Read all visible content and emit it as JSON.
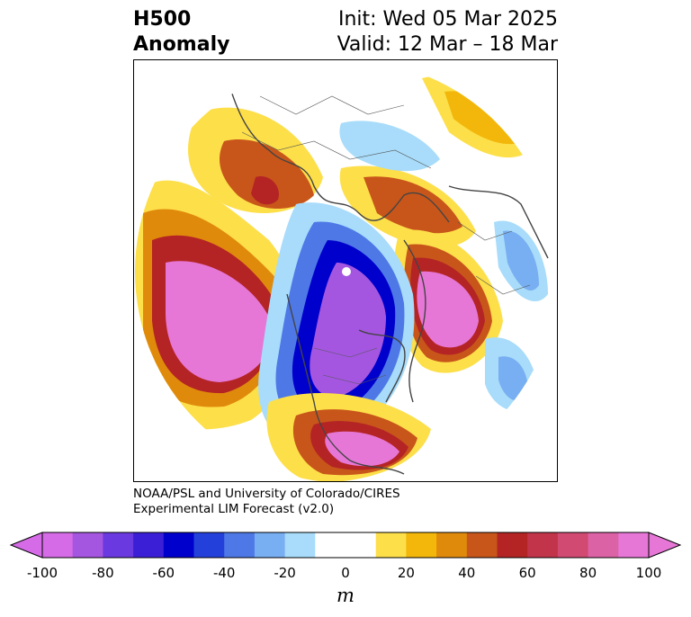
{
  "title": {
    "left_line1": "H500",
    "left_line2": "Anomaly",
    "right_line1": "Init: Wed 05 Mar 2025",
    "right_line2": "Valid: 12 Mar – 18 Mar"
  },
  "credit": {
    "line1": "NOAA/PSL and University of Colorado/CIRES",
    "line2": "Experimental LIM Forecast (v2.0)"
  },
  "colorbar": {
    "unit": "m",
    "ticks": [
      "-100",
      "-80",
      "-60",
      "-40",
      "-20",
      "0",
      "20",
      "40",
      "60",
      "80",
      "100"
    ],
    "colors": [
      "#d56be6",
      "#a456e0",
      "#6a3ae0",
      "#3b1fd6",
      "#0000cc",
      "#2440da",
      "#4e78e6",
      "#78aef2",
      "#a8dcfa",
      "#ffffff",
      "#ffffff",
      "#fddf4a",
      "#f2b70a",
      "#e08a0c",
      "#c8561a",
      "#b42424",
      "#c2344a",
      "#d04a72",
      "#dc62a6",
      "#e677d6"
    ]
  }
}
